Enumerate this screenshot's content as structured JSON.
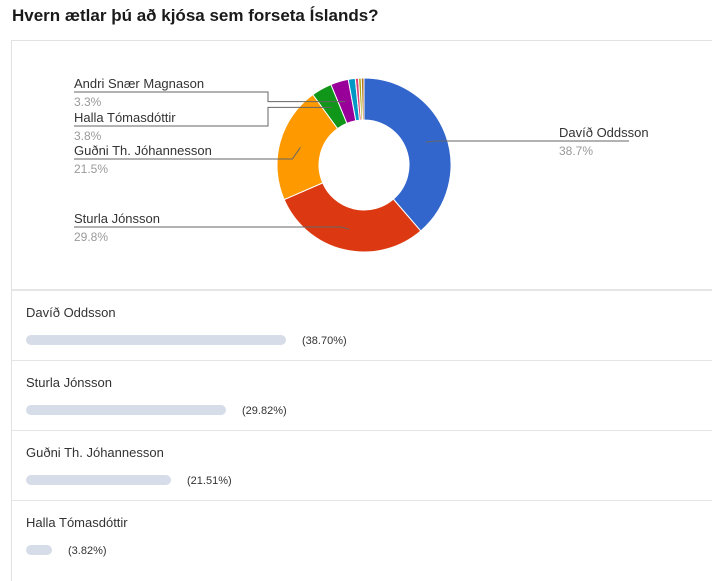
{
  "title": "Hvern ætlar þú að kjósa sem forseta Íslands?",
  "chart_data": {
    "type": "pie",
    "title": "Hvern ætlar þú að kjósa sem forseta Íslands?",
    "slices": [
      {
        "name": "Davíð Oddsson",
        "value": 38.7,
        "color": "#3366cc",
        "label": "38.7%"
      },
      {
        "name": "Sturla Jónsson",
        "value": 29.8,
        "color": "#dc3912",
        "label": "29.8%"
      },
      {
        "name": "Guðni Th. Jóhannesson",
        "value": 21.5,
        "color": "#ff9900",
        "label": "21.5%"
      },
      {
        "name": "Halla Tómasdóttir",
        "value": 3.8,
        "color": "#109618",
        "label": "3.8%"
      },
      {
        "name": "Andri Snær Magnason",
        "value": 3.3,
        "color": "#990099",
        "label": "3.3%"
      },
      {
        "name": "",
        "value": 1.3,
        "color": "#0099c6",
        "label": ""
      },
      {
        "name": "",
        "value": 0.6,
        "color": "#dd4477",
        "label": ""
      },
      {
        "name": "",
        "value": 0.5,
        "color": "#aaaa11",
        "label": ""
      },
      {
        "name": "",
        "value": 0.5,
        "color": "#b77322",
        "label": ""
      }
    ],
    "rows": [
      {
        "name": "Davíð Oddsson",
        "value": 38.7,
        "pct": "(38.70%)"
      },
      {
        "name": "Sturla Jónsson",
        "value": 29.82,
        "pct": "(29.82%)"
      },
      {
        "name": "Guðni Th. Jóhannesson",
        "value": 21.51,
        "pct": "(21.51%)"
      },
      {
        "name": "Halla Tómasdóttir",
        "value": 3.82,
        "pct": "(3.82%)"
      }
    ]
  }
}
